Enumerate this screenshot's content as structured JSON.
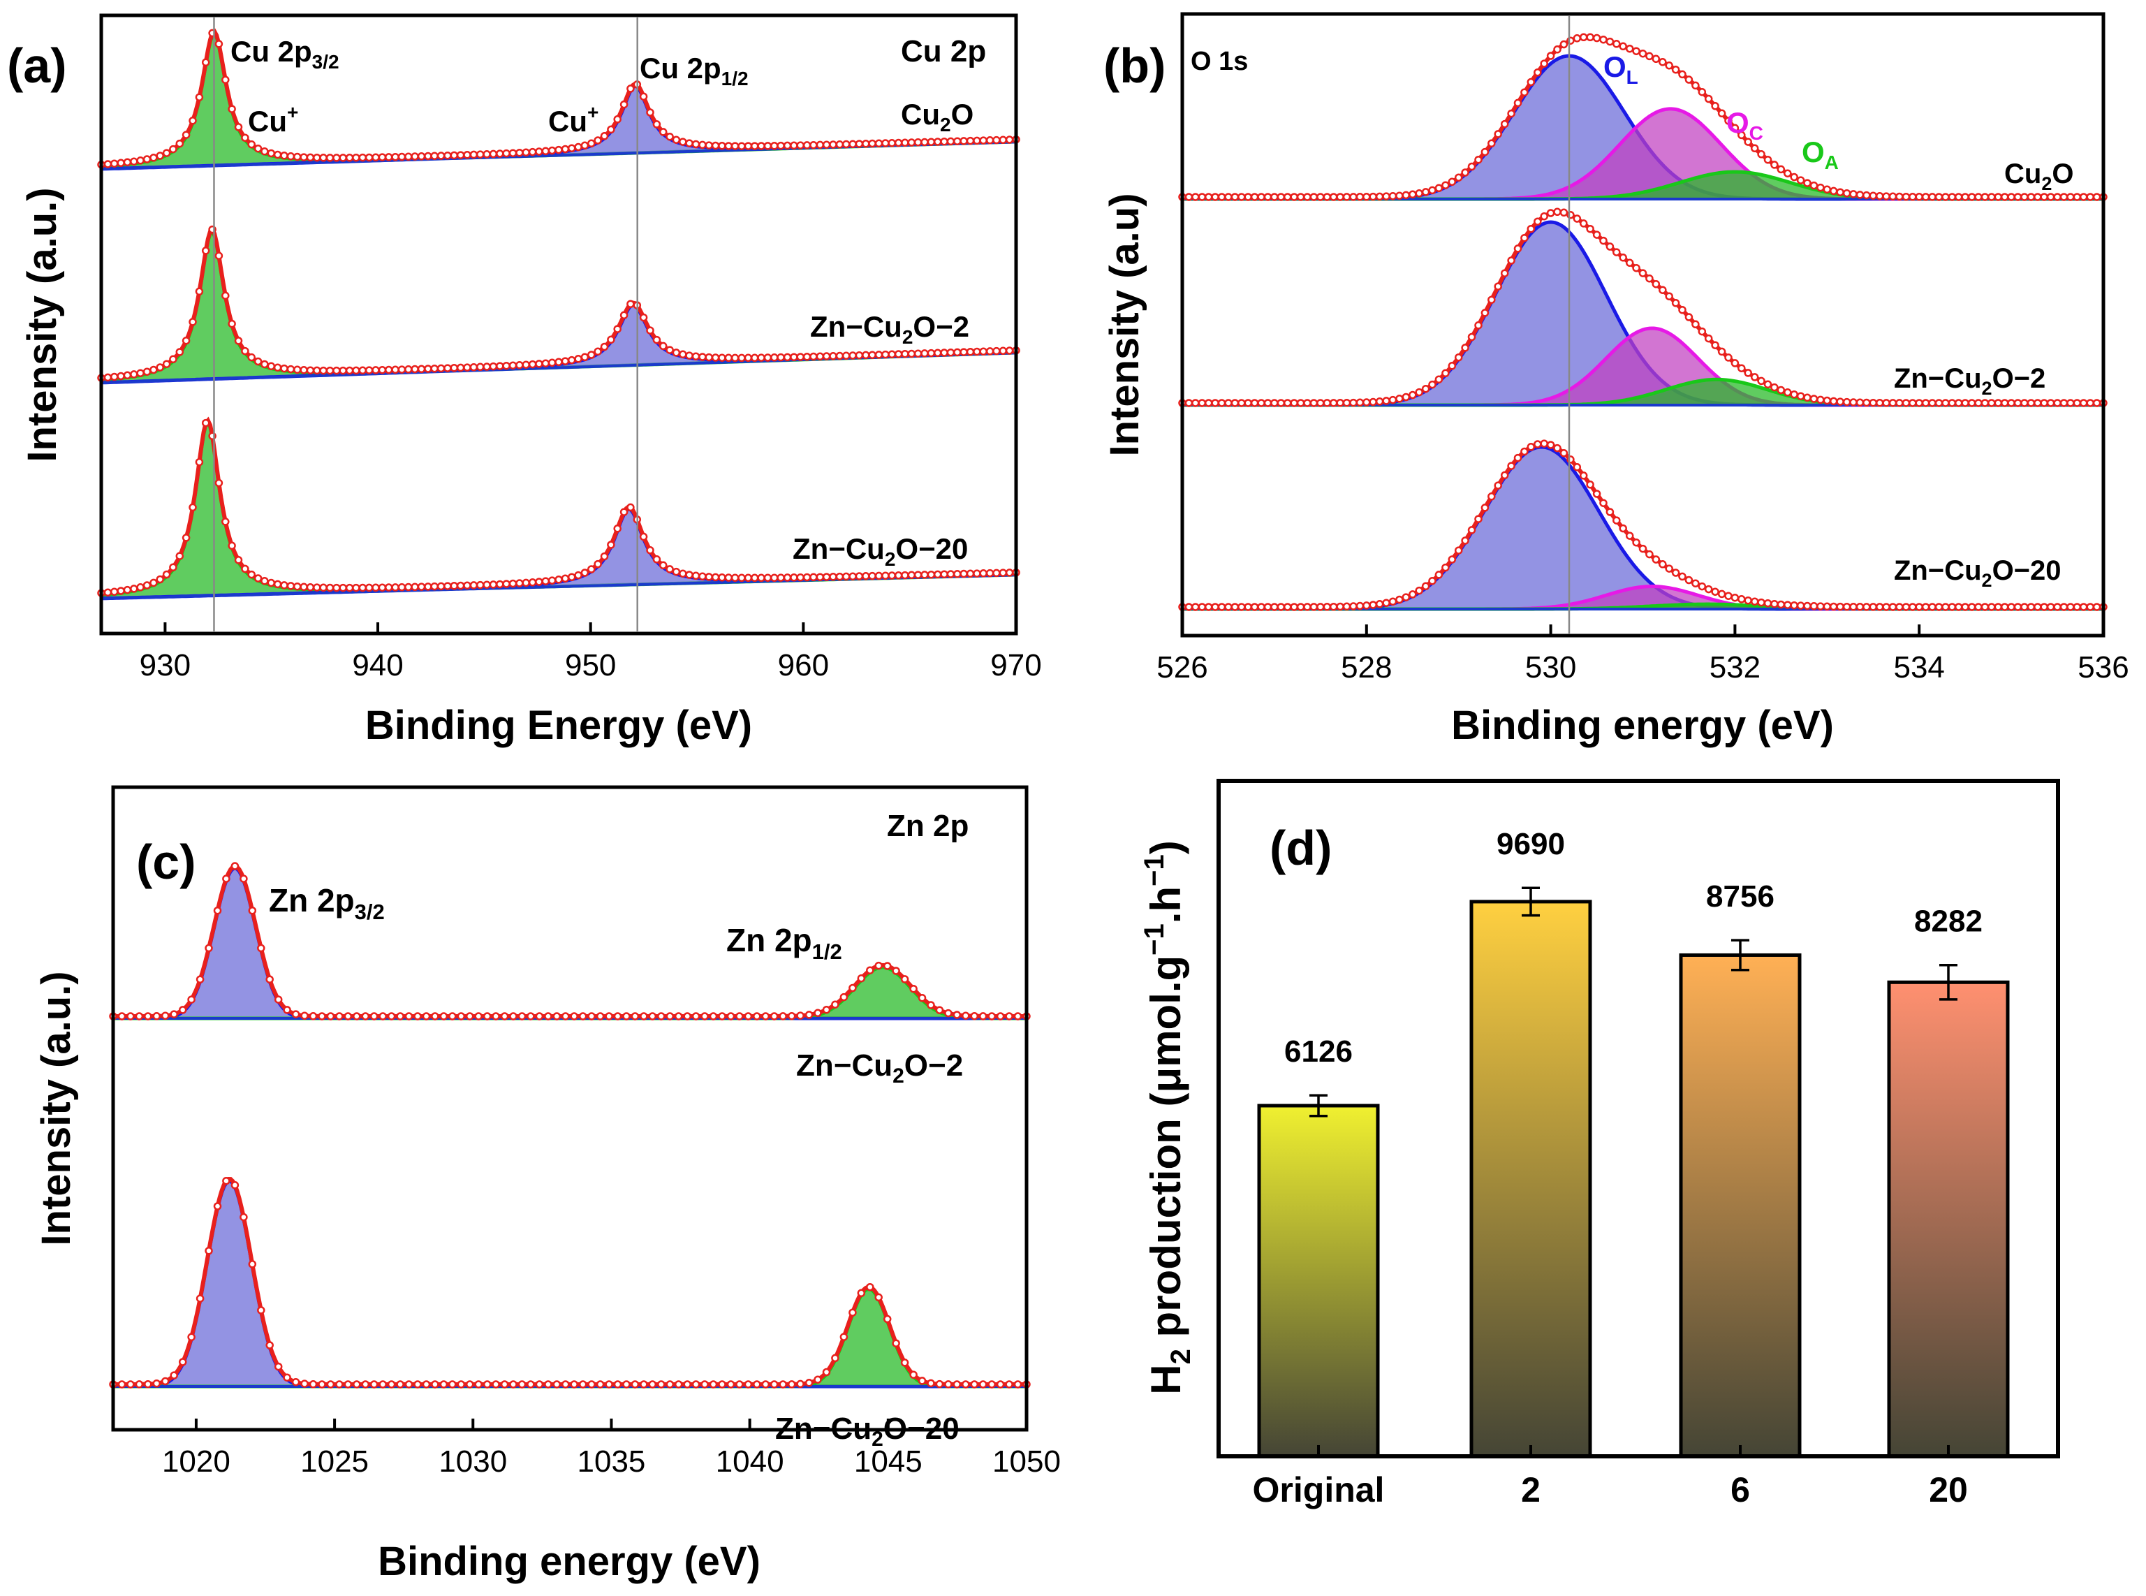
{
  "colors": {
    "data_red": "#e8201c",
    "fit_blue": "#1a1ae6",
    "fill_blue": "#6a6ad8",
    "fit_green": "#19c819",
    "fill_green": "#22b822",
    "fit_magenta": "#e619e6",
    "fill_magenta": "#c040c0",
    "baseline_blue": "#1a3acc",
    "ref_line": "#888888",
    "bar_top_0": "#f0f030",
    "bar_top_1": "#ffd040",
    "bar_top_2": "#ffb055",
    "bar_top_3": "#ff9070",
    "bar_bottom": "#454535"
  },
  "chart_data": [
    {
      "id": "a",
      "panel_label": "(a)",
      "type": "line",
      "title": "Cu 2p",
      "xlabel": "Binding Energy (eV)",
      "ylabel": "Intensity (a.u.)",
      "xlim": [
        927,
        970
      ],
      "xticks": [
        "930",
        "940",
        "950",
        "960",
        "970"
      ],
      "reference_lines_x": [
        932.3,
        952.2
      ],
      "peak_labels": {
        "cu2p32": {
          "base": "Cu 2p",
          "sub": "3/2"
        },
        "cu2p12": {
          "base": "Cu 2p",
          "sub": "1/2"
        },
        "cu_plus_1": {
          "base": "Cu",
          "sup": "+"
        },
        "cu_plus_2": {
          "base": "Cu",
          "sup": "+"
        }
      },
      "series": [
        {
          "name": "Cu2O",
          "label": {
            "pre": "Cu",
            "sub": "2",
            "post": "O"
          },
          "peaks": [
            {
              "center": 932.3,
              "height": 6.1,
              "fwhm": 1.4
            },
            {
              "center": 952.1,
              "height": 3.1,
              "fwhm": 1.6
            }
          ]
        },
        {
          "name": "Zn-Cu2O-2",
          "label": {
            "pre": "Zn−Cu",
            "sub": "2",
            "post": "O−2"
          },
          "peaks": [
            {
              "center": 932.2,
              "height": 6.6,
              "fwhm": 1.4
            },
            {
              "center": 952.0,
              "height": 2.7,
              "fwhm": 1.7
            }
          ]
        },
        {
          "name": "Zn-Cu2O-20",
          "label": {
            "pre": "Zn−Cu",
            "sub": "2",
            "post": "O−20"
          },
          "peaks": [
            {
              "center": 932.0,
              "height": 8.0,
              "fwhm": 1.4
            },
            {
              "center": 951.8,
              "height": 3.5,
              "fwhm": 1.7
            }
          ]
        }
      ]
    },
    {
      "id": "b",
      "panel_label": "(b)",
      "type": "line",
      "title": "O 1s",
      "xlabel": "Binding energy (eV)",
      "ylabel": "Intensity (a.u)",
      "xlim": [
        526,
        536
      ],
      "xticks": [
        "526",
        "528",
        "530",
        "532",
        "534",
        "536"
      ],
      "reference_lines_x": [
        530.2
      ],
      "component_labels": {
        "OL": {
          "base": "O",
          "sub": "L"
        },
        "OC": {
          "base": "O",
          "sub": "C"
        },
        "OA": {
          "base": "O",
          "sub": "A"
        }
      },
      "series": [
        {
          "name": "Cu2O",
          "label": {
            "pre": "Cu",
            "sub": "2",
            "post": "O"
          },
          "components": [
            {
              "name": "OL",
              "center": 530.2,
              "height": 1.0,
              "sigma": 0.6
            },
            {
              "name": "OC",
              "center": 531.3,
              "height": 0.63,
              "sigma": 0.55
            },
            {
              "name": "OA",
              "center": 532.0,
              "height": 0.19,
              "sigma": 0.6
            }
          ]
        },
        {
          "name": "Zn-Cu2O-2",
          "label": {
            "pre": "Zn−Cu",
            "sub": "2",
            "post": "O−2"
          },
          "components": [
            {
              "name": "OL",
              "center": 530.0,
              "height": 1.0,
              "sigma": 0.6
            },
            {
              "name": "OC",
              "center": 531.1,
              "height": 0.42,
              "sigma": 0.5
            },
            {
              "name": "OA",
              "center": 531.8,
              "height": 0.14,
              "sigma": 0.55
            }
          ]
        },
        {
          "name": "Zn-Cu2O-20",
          "label": {
            "pre": "Zn−Cu",
            "sub": "2",
            "post": "O−20"
          },
          "components": [
            {
              "name": "OL",
              "center": 529.9,
              "height": 1.0,
              "sigma": 0.62
            },
            {
              "name": "OC",
              "center": 531.1,
              "height": 0.14,
              "sigma": 0.5
            },
            {
              "name": "OA",
              "center": 531.7,
              "height": 0.03,
              "sigma": 0.6
            }
          ]
        }
      ]
    },
    {
      "id": "c",
      "panel_label": "(c)",
      "type": "line",
      "title": "Zn 2p",
      "xlabel": "Binding energy (eV)",
      "ylabel": "Intensity (a.u.)",
      "xlim": [
        1017,
        1050
      ],
      "xticks": [
        "1020",
        "1025",
        "1030",
        "1035",
        "1040",
        "1045",
        "1050"
      ],
      "peak_labels": {
        "zn2p32": {
          "base": "Zn 2p",
          "sub": "3/2"
        },
        "zn2p12": {
          "base": "Zn 2p",
          "sub": "1/2"
        }
      },
      "series": [
        {
          "name": "Zn-Cu2O-2",
          "label": {
            "pre": "Zn−Cu",
            "sub": "2",
            "post": "O−2"
          },
          "peaks": [
            {
              "center": 1021.4,
              "height": 1.0,
              "sigma": 0.75
            },
            {
              "center": 1044.8,
              "height": 0.34,
              "sigma": 1.0
            }
          ]
        },
        {
          "name": "Zn-Cu2O-20",
          "label": {
            "pre": "Zn−Cu",
            "sub": "2",
            "post": "O−20"
          },
          "peaks": [
            {
              "center": 1021.2,
              "height": 1.35,
              "sigma": 0.8
            },
            {
              "center": 1044.3,
              "height": 0.64,
              "sigma": 0.75
            }
          ]
        }
      ]
    },
    {
      "id": "d",
      "panel_label": "(d)",
      "type": "bar",
      "xlabel": "",
      "ylabel": {
        "pre": "H",
        "sub": "2",
        "mid": " production (μmol.g",
        "sup1": "−1",
        "mid2": ".h",
        "sup2": "−1",
        "post": ")"
      },
      "categories": [
        "Original",
        "2",
        "6",
        "20"
      ],
      "values": [
        6126,
        9690,
        8756,
        8282
      ],
      "value_labels": [
        "6126",
        "9690",
        "8756",
        "8282"
      ],
      "errors": [
        180,
        240,
        260,
        300
      ],
      "ylim": [
        0,
        11800
      ]
    }
  ]
}
